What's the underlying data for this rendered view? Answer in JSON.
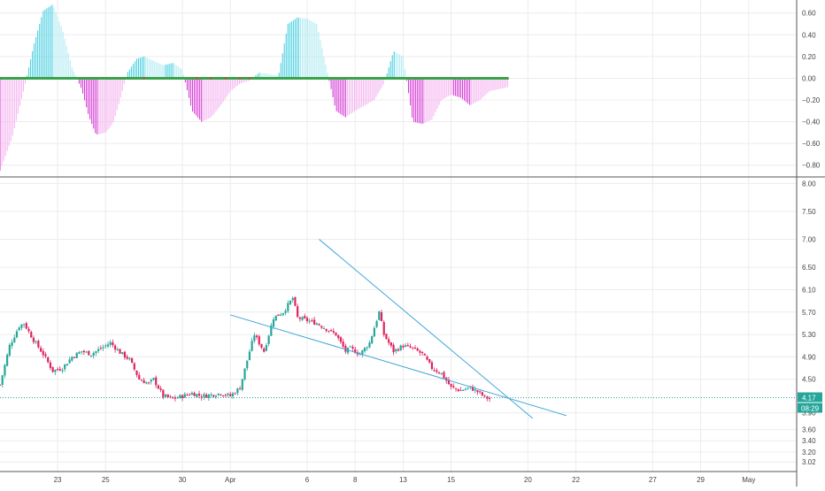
{
  "colors": {
    "background": "#ffffff",
    "grid": "#ececec",
    "axis_line": "#555555",
    "axis_text": "#444444",
    "candle_up": "#26a69a",
    "candle_down": "#e0245e",
    "trendline": "#3fa6d8",
    "price_line": "#26a69a",
    "osc_pos_strong": "#4dd0e1",
    "osc_pos_weak": "#b2ebf2",
    "osc_neg_strong": "#d63fd6",
    "osc_neg_weak": "#f5b3f0",
    "zero_line": "#3aa34a",
    "zero_dot": "#e53935"
  },
  "chart_data": [
    {
      "type": "bar",
      "name": "",
      "title": "",
      "xlabel": "",
      "ylabel": "",
      "ylim": [
        -0.9,
        0.72
      ],
      "y_ticks": [
        "0.60",
        "0.40",
        "0.20",
        "0.00",
        "−0.20",
        "−0.40",
        "−0.60",
        "−0.80"
      ],
      "y_tick_values": [
        0.6,
        0.4,
        0.2,
        0.0,
        -0.2,
        -0.4,
        -0.6,
        -0.8
      ],
      "grid": true,
      "key_points": {
        "x": [
          0,
          5,
          10,
          14,
          18,
          22,
          26,
          30,
          34,
          37,
          40,
          44,
          47,
          50,
          53,
          57,
          60,
          64,
          68,
          72,
          76,
          80,
          84,
          88,
          92,
          96,
          100,
          104,
          108,
          112,
          116,
          120,
          124,
          128,
          132,
          136,
          140,
          144,
          148,
          152,
          156,
          160,
          164,
          168,
          172,
          176,
          180,
          184,
          188,
          192,
          196,
          200,
          204,
          208,
          212
        ],
        "values": [
          -0.85,
          -0.55,
          -0.1,
          0.3,
          0.62,
          0.68,
          0.45,
          0.1,
          -0.1,
          -0.35,
          -0.52,
          -0.5,
          -0.42,
          -0.2,
          0.05,
          0.18,
          0.2,
          0.16,
          0.12,
          0.14,
          0.08,
          -0.3,
          -0.4,
          -0.36,
          -0.25,
          -0.12,
          -0.05,
          -0.02,
          0.05,
          0.04,
          0.02,
          0.5,
          0.56,
          0.55,
          0.5,
          0.1,
          -0.3,
          -0.36,
          -0.3,
          -0.25,
          -0.2,
          -0.05,
          0.25,
          0.2,
          -0.4,
          -0.42,
          -0.38,
          -0.2,
          -0.15,
          -0.18,
          -0.25,
          -0.2,
          -0.12,
          -0.1,
          -0.08
        ]
      }
    },
    {
      "type": "candlestick",
      "name": "",
      "title": "",
      "xlabel": "",
      "ylabel": "",
      "ylim": [
        2.85,
        8.1
      ],
      "y_ticks": [
        "8.00",
        "7.50",
        "7.00",
        "6.50",
        "6.10",
        "5.70",
        "5.30",
        "4.90",
        "4.50",
        "3.90",
        "3.60",
        "3.40",
        "3.20",
        "3.02"
      ],
      "y_tick_values": [
        8.0,
        7.5,
        7.0,
        6.5,
        6.1,
        5.7,
        5.3,
        4.9,
        4.5,
        3.9,
        3.6,
        3.4,
        3.2,
        3.02
      ],
      "x_ticks": [
        "23",
        "25",
        "30",
        "Apr",
        "6",
        "8",
        "13",
        "15",
        "20",
        "22",
        "27",
        "29",
        "May"
      ],
      "x_tick_positions": [
        24,
        44,
        76,
        96,
        128,
        148,
        168,
        188,
        220,
        240,
        272,
        292,
        312
      ],
      "x_range": [
        0,
        332
      ],
      "last_price": "4.17",
      "countdown": "08:29",
      "grid": true,
      "key_points": {
        "x": [
          0,
          4,
          8,
          10,
          14,
          18,
          22,
          26,
          30,
          34,
          38,
          42,
          46,
          50,
          54,
          58,
          62,
          64,
          68,
          72,
          76,
          80,
          84,
          88,
          92,
          96,
          100,
          104,
          106,
          108,
          110,
          114,
          118,
          122,
          124,
          128,
          132,
          136,
          140,
          144,
          146,
          150,
          154,
          158,
          160,
          164,
          168,
          172,
          176,
          180,
          184,
          188,
          192,
          196,
          200,
          202,
          204
        ],
        "close": [
          4.4,
          5.1,
          5.45,
          5.5,
          5.2,
          4.95,
          4.65,
          4.7,
          4.9,
          5.0,
          4.95,
          5.05,
          5.15,
          4.98,
          4.85,
          4.5,
          4.42,
          4.5,
          4.2,
          4.15,
          4.2,
          4.25,
          4.2,
          4.22,
          4.25,
          4.2,
          4.35,
          5.0,
          5.3,
          5.15,
          5.0,
          5.6,
          5.7,
          5.95,
          5.6,
          5.55,
          5.5,
          5.4,
          5.3,
          5.0,
          5.05,
          4.95,
          5.15,
          5.7,
          5.3,
          5.0,
          5.1,
          5.05,
          4.95,
          4.7,
          4.6,
          4.35,
          4.3,
          4.35,
          4.25,
          4.18,
          4.15
        ],
        "ohlc_spread": 0.08
      },
      "trendlines": [
        {
          "x": [
            96,
            236
          ],
          "y": [
            5.65,
            3.85
          ]
        },
        {
          "x": [
            133,
            222
          ],
          "y": [
            7.0,
            3.8
          ]
        }
      ]
    }
  ]
}
